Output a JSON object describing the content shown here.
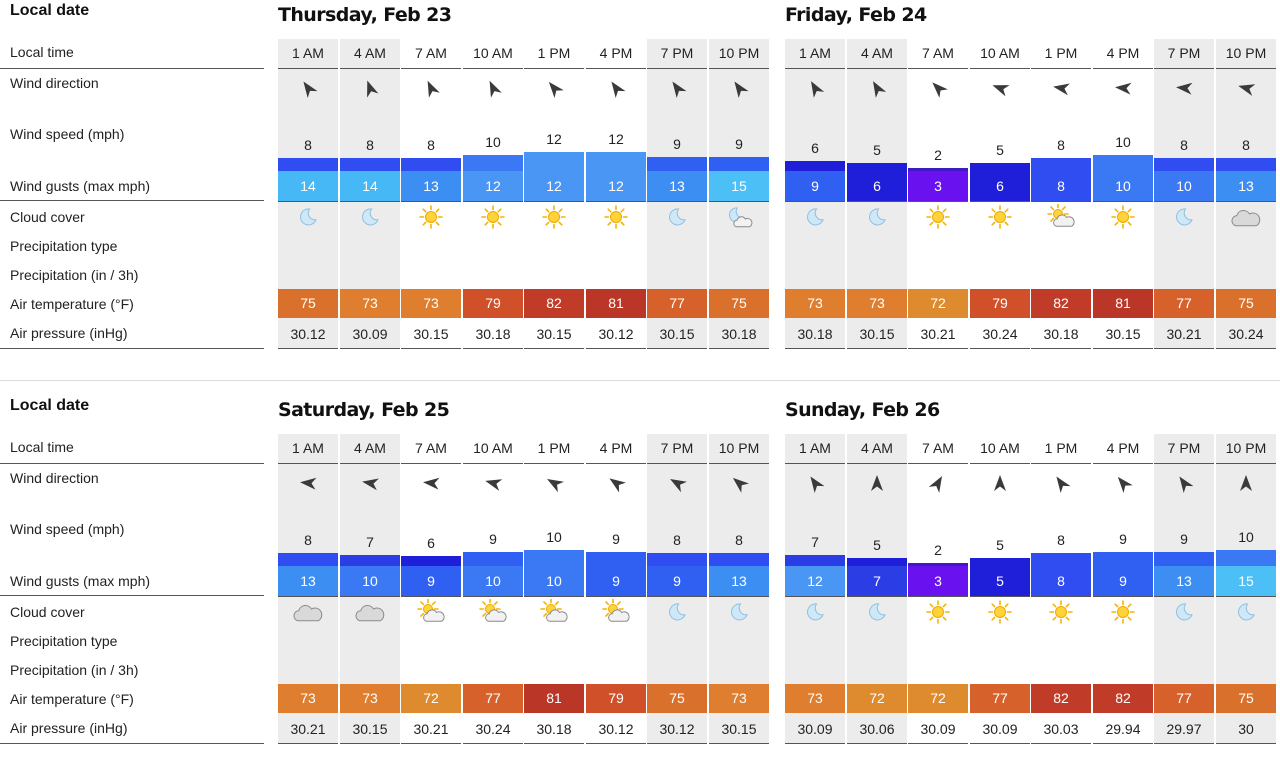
{
  "row_labels": {
    "date": "Local date",
    "time": "Local time",
    "wind_direction": "Wind direction",
    "wind_speed": "Wind speed (mph)",
    "wind_gusts": "Wind gusts (max mph)",
    "cloud_cover": "Cloud cover",
    "precip_type": "Precipitation type",
    "precip": "Precipitation (in / 3h)",
    "temperature": "Air temperature (°F)",
    "pressure": "Air pressure (inHg)"
  },
  "times": [
    "1 AM",
    "4 AM",
    "7 AM",
    "10 AM",
    "1 PM",
    "4 PM",
    "7 PM",
    "10 PM"
  ],
  "night": [
    true,
    true,
    false,
    false,
    false,
    false,
    true,
    true
  ],
  "days": [
    {
      "title": "Thursday, Feb 23",
      "wind_dir_deg": [
        -35,
        -20,
        -25,
        -25,
        -40,
        -35,
        -35,
        -35
      ],
      "wind_speed": [
        8,
        8,
        8,
        10,
        12,
        12,
        9,
        9
      ],
      "wind_gusts": [
        14,
        14,
        13,
        12,
        12,
        12,
        13,
        15
      ],
      "clouds": [
        "moon",
        "moon",
        "sun",
        "sun",
        "sun",
        "sun",
        "moon",
        "moon-cloud"
      ],
      "temp": [
        75,
        73,
        73,
        79,
        82,
        81,
        77,
        75
      ],
      "pressure": [
        "30.12",
        "30.09",
        "30.15",
        "30.18",
        "30.15",
        "30.12",
        "30.15",
        "30.18"
      ]
    },
    {
      "title": "Friday, Feb 24",
      "wind_dir_deg": [
        -30,
        -30,
        -45,
        -70,
        -80,
        -85,
        -85,
        -75
      ],
      "wind_speed": [
        6,
        5,
        2,
        5,
        8,
        10,
        8,
        8
      ],
      "wind_gusts": [
        9,
        6,
        3,
        6,
        8,
        10,
        10,
        13
      ],
      "clouds": [
        "moon",
        "moon",
        "sun",
        "sun",
        "sun-cloud",
        "sun",
        "moon",
        "cloud"
      ],
      "temp": [
        73,
        73,
        72,
        79,
        82,
        81,
        77,
        75
      ],
      "pressure": [
        "30.18",
        "30.15",
        "30.21",
        "30.24",
        "30.18",
        "30.15",
        "30.21",
        "30.24"
      ]
    },
    {
      "title": "Saturday, Feb 25",
      "wind_dir_deg": [
        -85,
        -80,
        -85,
        -75,
        -60,
        -55,
        -60,
        -50
      ],
      "wind_speed": [
        8,
        7,
        6,
        9,
        10,
        9,
        8,
        8
      ],
      "wind_gusts": [
        13,
        10,
        9,
        10,
        10,
        9,
        9,
        13
      ],
      "clouds": [
        "cloud",
        "cloud",
        "sun-cloud",
        "sun-cloud",
        "sun-cloud",
        "sun-cloud",
        "moon",
        "moon"
      ],
      "temp": [
        73,
        73,
        72,
        77,
        81,
        79,
        75,
        73
      ],
      "pressure": [
        "30.21",
        "30.15",
        "30.21",
        "30.24",
        "30.18",
        "30.12",
        "30.12",
        "30.15"
      ]
    },
    {
      "title": "Sunday, Feb 26",
      "wind_dir_deg": [
        -35,
        0,
        30,
        0,
        -35,
        -40,
        -35,
        0
      ],
      "wind_speed": [
        7,
        5,
        2,
        5,
        8,
        9,
        9,
        10
      ],
      "wind_gusts": [
        12,
        7,
        3,
        5,
        8,
        9,
        13,
        15
      ],
      "clouds": [
        "moon",
        "moon",
        "sun",
        "sun",
        "sun",
        "sun",
        "moon",
        "moon"
      ],
      "temp": [
        73,
        72,
        72,
        77,
        82,
        82,
        77,
        75
      ],
      "pressure": [
        "30.09",
        "30.06",
        "30.09",
        "30.09",
        "30.03",
        "29.94",
        "29.97",
        "30"
      ]
    }
  ],
  "colors": {
    "wind_scale": {
      "2": "#3e19c4",
      "3": "#6a11f0",
      "5": "#1f1ed8",
      "6": "#1f1ed8",
      "7": "#2b3ee6",
      "8": "#2f4df0",
      "9": "#3060f2",
      "10": "#3b79f4",
      "12": "#4a96f4",
      "13": "#3d8ef2",
      "14": "#45b8f5",
      "15": "#4cc0f6"
    },
    "temp_scale": {
      "72": "#de8a2e",
      "73": "#de7e2e",
      "75": "#d9712c",
      "77": "#d6612b",
      "79": "#d0502a",
      "81": "#ba3627",
      "82": "#c03c28"
    },
    "separator": "#dcdcdc",
    "night_column": "#ececec"
  }
}
